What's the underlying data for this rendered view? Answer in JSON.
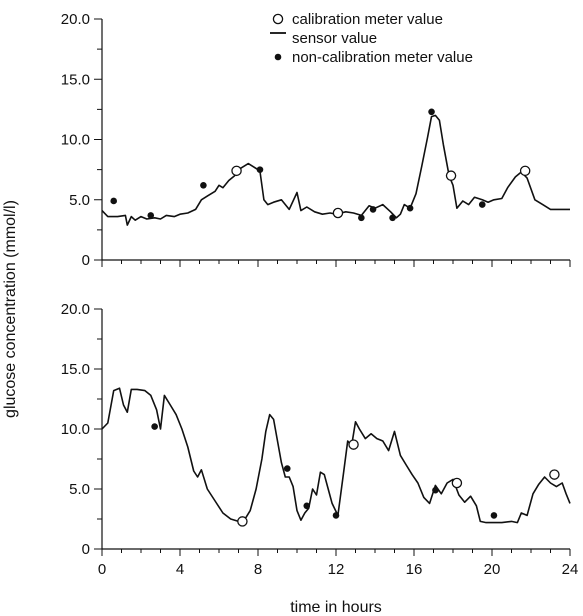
{
  "chart_data": [
    {
      "type": "line",
      "panel": "top",
      "xlim": [
        0,
        24
      ],
      "ylim": [
        0,
        20
      ],
      "y_ticks": [
        "0",
        "5.0",
        "10.0",
        "15.0",
        "20.0"
      ],
      "x_ticks": [],
      "legend": {
        "placement": "top-right",
        "entries": [
          {
            "marker": "open-circle",
            "label": "calibration meter value"
          },
          {
            "marker": "line",
            "label": "sensor value"
          },
          {
            "marker": "filled-dot",
            "label": "non-calibration meter value"
          }
        ]
      },
      "series": [
        {
          "name": "sensor value",
          "x": [
            0,
            0.3,
            0.8,
            1.2,
            1.3,
            1.5,
            1.7,
            2.0,
            2.3,
            2.7,
            3.0,
            3.3,
            3.7,
            4.0,
            4.4,
            4.8,
            5.1,
            5.4,
            5.8,
            6.0,
            6.2,
            6.5,
            6.8,
            7.1,
            7.5,
            7.8,
            8.1,
            8.3,
            8.5,
            8.8,
            9.2,
            9.6,
            10.0,
            10.2,
            10.5,
            10.9,
            11.3,
            11.7,
            12.0,
            12.5,
            12.9,
            13.3,
            13.7,
            14.0,
            14.4,
            14.8,
            15.1,
            15.3,
            15.5,
            15.8,
            16.1,
            16.4,
            16.7,
            16.9,
            17.1,
            17.3,
            17.5,
            17.8,
            18.0,
            18.2,
            18.5,
            18.8,
            19.1,
            19.5,
            19.8,
            20.1,
            20.5,
            20.8,
            21.2,
            21.5,
            21.8,
            22.2,
            22.6,
            23.0,
            23.5,
            24.0
          ],
          "y": [
            4.1,
            3.6,
            3.6,
            3.7,
            2.9,
            3.6,
            3.3,
            3.6,
            3.4,
            3.5,
            3.4,
            3.7,
            3.6,
            3.8,
            3.9,
            4.2,
            5.0,
            5.3,
            5.7,
            6.2,
            6.0,
            6.6,
            7.0,
            7.6,
            8.0,
            7.7,
            7.4,
            5.0,
            4.6,
            4.8,
            5.0,
            4.2,
            5.6,
            4.1,
            4.4,
            4.0,
            3.8,
            3.9,
            3.8,
            4.0,
            3.9,
            3.7,
            4.5,
            4.3,
            4.6,
            4.0,
            3.5,
            3.8,
            4.6,
            4.3,
            5.5,
            7.8,
            10.2,
            11.9,
            12.0,
            11.6,
            9.6,
            7.0,
            6.2,
            4.3,
            4.9,
            4.6,
            5.2,
            5.0,
            4.8,
            5.0,
            5.1,
            6.0,
            6.9,
            7.3,
            6.8,
            5.0,
            4.6,
            4.2,
            4.2,
            4.2
          ]
        },
        {
          "name": "calibration meter value",
          "x": [
            6.9,
            12.1,
            17.9,
            21.7
          ],
          "y": [
            7.4,
            3.9,
            7.0,
            7.4
          ]
        },
        {
          "name": "non-calibration meter value",
          "x": [
            0.6,
            2.5,
            5.2,
            8.1,
            13.3,
            13.9,
            14.9,
            15.8,
            16.9,
            19.5
          ],
          "y": [
            4.9,
            3.7,
            6.2,
            7.5,
            3.5,
            4.2,
            3.5,
            4.3,
            12.3,
            4.6
          ]
        }
      ]
    },
    {
      "type": "line",
      "panel": "bottom",
      "xlim": [
        0,
        24
      ],
      "ylim": [
        0,
        20
      ],
      "y_ticks": [
        "0",
        "5.0",
        "10.0",
        "15.0",
        "20.0"
      ],
      "x_ticks": [
        "0",
        "4",
        "8",
        "12",
        "16",
        "20",
        "24"
      ],
      "xlabel": "time in hours",
      "ylabel": "glucose concentration (mmol/l)",
      "series": [
        {
          "name": "sensor value",
          "x": [
            0,
            0.3,
            0.6,
            0.9,
            1.1,
            1.3,
            1.5,
            1.8,
            2.2,
            2.5,
            2.8,
            3.0,
            3.2,
            3.5,
            3.8,
            4.1,
            4.4,
            4.7,
            4.9,
            5.1,
            5.4,
            5.8,
            6.2,
            6.6,
            7.0,
            7.3,
            7.6,
            7.9,
            8.2,
            8.4,
            8.6,
            8.8,
            9.0,
            9.2,
            9.4,
            9.6,
            9.8,
            10.0,
            10.2,
            10.4,
            10.6,
            10.8,
            11.0,
            11.2,
            11.4,
            11.6,
            11.8,
            12.1,
            12.4,
            12.6,
            12.8,
            13.0,
            13.2,
            13.5,
            13.8,
            14.1,
            14.4,
            14.7,
            15.0,
            15.3,
            15.6,
            15.9,
            16.2,
            16.5,
            16.8,
            17.1,
            17.4,
            17.7,
            18.0,
            18.3,
            18.6,
            18.9,
            19.2,
            19.4,
            19.7,
            20.0,
            20.5,
            21.0,
            21.3,
            21.5,
            21.8,
            22.1,
            22.4,
            22.7,
            23.0,
            23.3,
            23.6,
            23.8,
            24.0
          ],
          "y": [
            10.0,
            10.5,
            13.2,
            13.4,
            12.0,
            11.4,
            13.3,
            13.3,
            13.2,
            12.8,
            11.6,
            10.0,
            12.8,
            12.0,
            11.2,
            10.0,
            8.5,
            6.5,
            6.0,
            6.6,
            5.0,
            4.0,
            3.0,
            2.5,
            2.3,
            2.4,
            3.2,
            5.0,
            7.5,
            9.8,
            11.2,
            10.8,
            9.0,
            7.2,
            6.0,
            6.0,
            5.2,
            3.2,
            2.4,
            3.0,
            3.4,
            5.0,
            4.5,
            6.4,
            6.2,
            5.0,
            3.8,
            2.8,
            6.5,
            9.0,
            8.6,
            10.6,
            10.0,
            9.2,
            9.6,
            9.2,
            9.0,
            8.2,
            9.8,
            7.8,
            7.0,
            6.2,
            5.5,
            4.3,
            3.8,
            5.3,
            4.6,
            5.5,
            5.8,
            4.5,
            3.9,
            4.4,
            3.6,
            2.3,
            2.2,
            2.2,
            2.2,
            2.3,
            2.2,
            3.0,
            2.8,
            4.6,
            5.4,
            6.0,
            5.5,
            5.2,
            5.5,
            4.6,
            3.8
          ]
        },
        {
          "name": "calibration meter value",
          "x": [
            7.2,
            12.9,
            18.2,
            23.2
          ],
          "y": [
            2.3,
            8.7,
            5.5,
            6.2
          ]
        },
        {
          "name": "non-calibration meter value",
          "x": [
            2.7,
            9.5,
            10.5,
            12.0,
            17.1,
            20.1
          ],
          "y": [
            10.2,
            6.7,
            3.6,
            2.8,
            4.9,
            2.8
          ]
        }
      ]
    }
  ]
}
